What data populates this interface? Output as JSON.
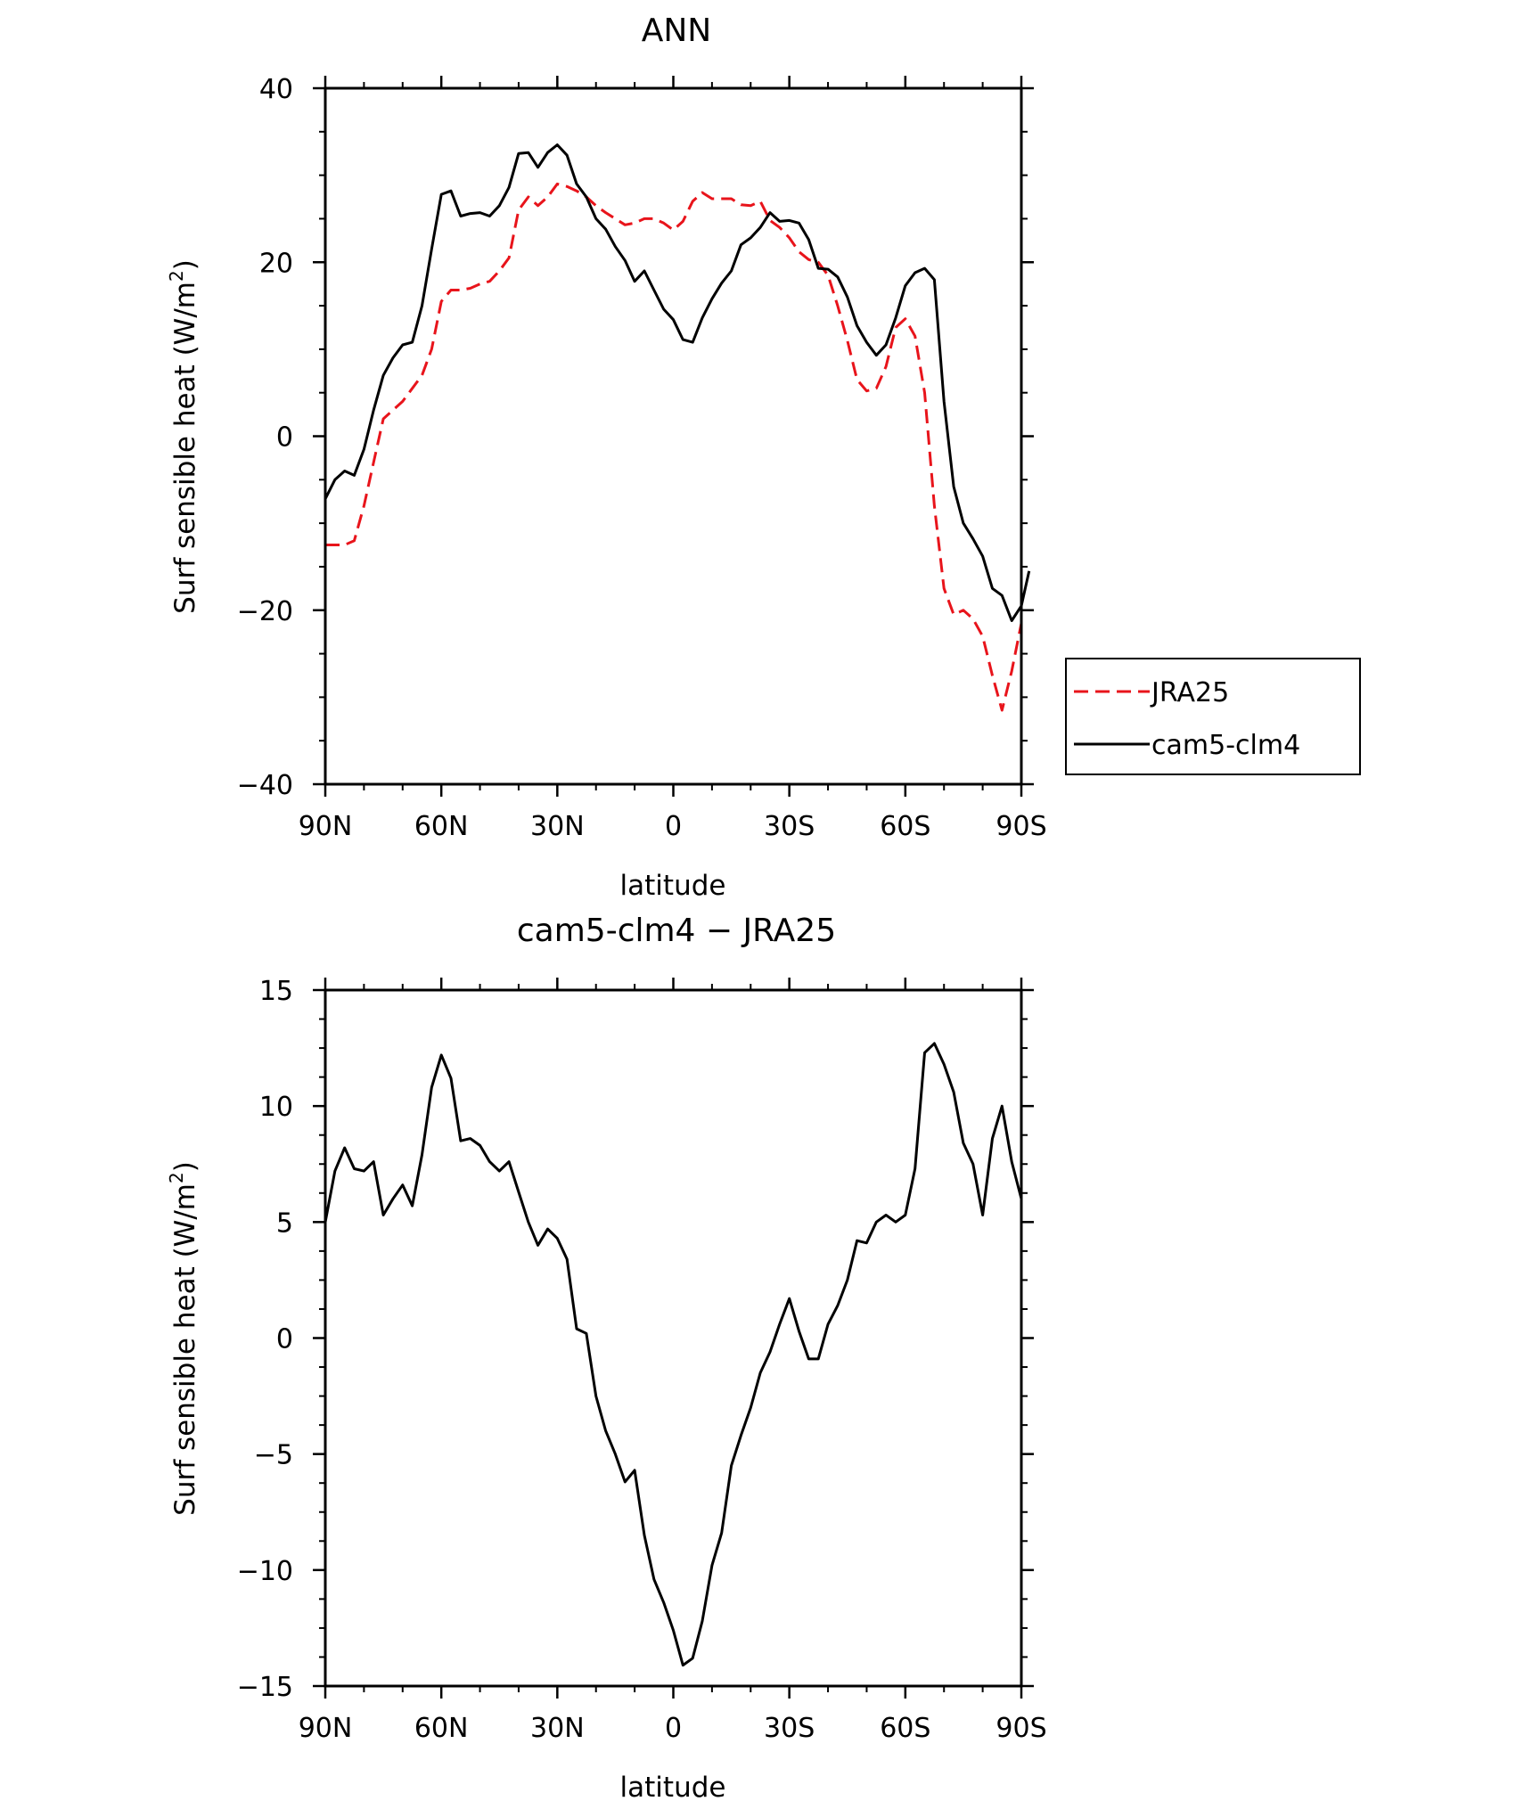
{
  "chart_data": [
    {
      "type": "line",
      "title": "ANN",
      "xlabel": "latitude",
      "ylabel": "Surf sensible heat (W/m²)",
      "ylabel_main": "Surf sensible heat (W/m",
      "ylabel_sup": "2",
      "ylabel_close": ")",
      "xlim": [
        90,
        -90
      ],
      "ylim": [
        -40,
        40
      ],
      "x_ticks": [
        {
          "value": 90,
          "label": "90N"
        },
        {
          "value": 60,
          "label": "60N"
        },
        {
          "value": 30,
          "label": "30N"
        },
        {
          "value": 0,
          "label": "0"
        },
        {
          "value": -30,
          "label": "30S"
        },
        {
          "value": -60,
          "label": "60S"
        },
        {
          "value": -90,
          "label": "90S"
        }
      ],
      "y_ticks": [
        {
          "value": 40,
          "label": "40"
        },
        {
          "value": 20,
          "label": "20"
        },
        {
          "value": 0,
          "label": "0"
        },
        {
          "value": -20,
          "label": "−20"
        },
        {
          "value": -40,
          "label": "−40"
        }
      ],
      "legend": {
        "position": "right, outside the plot area"
      },
      "series": [
        {
          "name": "JRA25",
          "color": "#e8141b",
          "dash": "dashed",
          "points": [
            [
              90,
              -12.5
            ],
            [
              87.5,
              -12.5
            ],
            [
              85,
              -12.5
            ],
            [
              82.5,
              -12
            ],
            [
              80,
              -8
            ],
            [
              77.5,
              -3
            ],
            [
              75,
              2
            ],
            [
              72.5,
              3
            ],
            [
              70,
              4
            ],
            [
              67.5,
              5.5
            ],
            [
              65,
              7
            ],
            [
              62.5,
              10
            ],
            [
              60,
              15.5
            ],
            [
              57.5,
              16.8
            ],
            [
              55,
              16.8
            ],
            [
              52.5,
              17
            ],
            [
              50,
              17.5
            ],
            [
              47.5,
              17.8
            ],
            [
              45,
              19
            ],
            [
              42.5,
              20.5
            ],
            [
              40,
              26
            ],
            [
              37.5,
              27.5
            ],
            [
              35,
              26.5
            ],
            [
              32.5,
              27.5
            ],
            [
              30,
              29
            ],
            [
              27.5,
              28.7
            ],
            [
              25,
              28.2
            ],
            [
              22.5,
              27.5
            ],
            [
              20,
              26.5
            ],
            [
              17.5,
              25.7
            ],
            [
              15,
              25
            ],
            [
              12.5,
              24.3
            ],
            [
              10,
              24.5
            ],
            [
              7.5,
              25
            ],
            [
              5,
              25
            ],
            [
              2.5,
              24.5
            ],
            [
              0,
              23.7
            ],
            [
              -2.5,
              24.7
            ],
            [
              -5,
              27
            ],
            [
              -7.5,
              28
            ],
            [
              -10,
              27.3
            ],
            [
              -12.5,
              27.3
            ],
            [
              -15,
              27.3
            ],
            [
              -17.5,
              26.6
            ],
            [
              -20,
              26.5
            ],
            [
              -22.5,
              27
            ],
            [
              -25,
              24.8
            ],
            [
              -27.5,
              24
            ],
            [
              -30,
              22.8
            ],
            [
              -32.5,
              21.2
            ],
            [
              -35,
              20.3
            ],
            [
              -37.5,
              20
            ],
            [
              -40,
              18.5
            ],
            [
              -42.5,
              15
            ],
            [
              -45,
              11
            ],
            [
              -47.5,
              6.5
            ],
            [
              -50,
              5.2
            ],
            [
              -52.5,
              5.5
            ],
            [
              -55,
              8
            ],
            [
              -57.5,
              12.5
            ],
            [
              -60,
              13.5
            ],
            [
              -62.5,
              11.5
            ],
            [
              -65,
              5
            ],
            [
              -67.5,
              -8
            ],
            [
              -70,
              -17.5
            ],
            [
              -72.5,
              -20.5
            ],
            [
              -75,
              -20
            ],
            [
              -77.5,
              -21
            ],
            [
              -80,
              -23
            ],
            [
              -82.5,
              -27.5
            ],
            [
              -85,
              -31.5
            ],
            [
              -87.5,
              -27
            ],
            [
              -90,
              -21.5
            ]
          ]
        },
        {
          "name": "cam5-clm4",
          "color": "#000000",
          "dash": "solid",
          "points": [
            [
              90,
              -7.2
            ],
            [
              87.5,
              -5
            ],
            [
              85,
              -4
            ],
            [
              82.5,
              -4.5
            ],
            [
              80,
              -1.5
            ],
            [
              77.5,
              3
            ],
            [
              75,
              7
            ],
            [
              72.5,
              9
            ],
            [
              70,
              10.5
            ],
            [
              67.5,
              10.8
            ],
            [
              65,
              15
            ],
            [
              62.5,
              21.5
            ],
            [
              60,
              27.8
            ],
            [
              57.5,
              28.2
            ],
            [
              55,
              25.3
            ],
            [
              52.5,
              25.6
            ],
            [
              50,
              25.7
            ],
            [
              47.5,
              25.3
            ],
            [
              45,
              26.5
            ],
            [
              42.5,
              28.6
            ],
            [
              40,
              32.5
            ],
            [
              37.5,
              32.6
            ],
            [
              35,
              30.9
            ],
            [
              32.5,
              32.6
            ],
            [
              30,
              33.5
            ],
            [
              27.5,
              32.3
            ],
            [
              25,
              29
            ],
            [
              22.5,
              27.5
            ],
            [
              20,
              25
            ],
            [
              17.5,
              23.8
            ],
            [
              15,
              21.8
            ],
            [
              12.5,
              20.2
            ],
            [
              10,
              17.8
            ],
            [
              7.5,
              19
            ],
            [
              5,
              16.8
            ],
            [
              2.5,
              14.6
            ],
            [
              0,
              13.4
            ],
            [
              -2.5,
              11.1
            ],
            [
              -5,
              10.8
            ],
            [
              -7.5,
              13.6
            ],
            [
              -10,
              15.8
            ],
            [
              -12.5,
              17.6
            ],
            [
              -15,
              19
            ],
            [
              -17.5,
              22
            ],
            [
              -20,
              22.8
            ],
            [
              -22.5,
              24
            ],
            [
              -25,
              25.7
            ],
            [
              -27.5,
              24.7
            ],
            [
              -30,
              24.8
            ],
            [
              -32.5,
              24.5
            ],
            [
              -35,
              22.6
            ],
            [
              -37.5,
              19.3
            ],
            [
              -40,
              19.2
            ],
            [
              -42.5,
              18.3
            ],
            [
              -45,
              16
            ],
            [
              -47.5,
              12.7
            ],
            [
              -50,
              10.8
            ],
            [
              -52.5,
              9.3
            ],
            [
              -55,
              10.5
            ],
            [
              -57.5,
              13.6
            ],
            [
              -60,
              17.3
            ],
            [
              -62.5,
              18.8
            ],
            [
              -65,
              19.3
            ],
            [
              -67.5,
              18
            ],
            [
              -70,
              4
            ],
            [
              -72.5,
              -5.8
            ],
            [
              -75,
              -10
            ],
            [
              -77.5,
              -11.8
            ],
            [
              -80,
              -13.8
            ],
            [
              -82.5,
              -17.5
            ],
            [
              -85,
              -18.3
            ],
            [
              -87.5,
              -21.2
            ],
            [
              -90,
              -19.5
            ],
            [
              -92,
              -15.5
            ]
          ]
        }
      ]
    },
    {
      "type": "line",
      "title": "cam5-clm4 − JRA25",
      "xlabel": "latitude",
      "ylabel": "Surf sensible heat (W/m²)",
      "ylabel_main": "Surf sensible heat (W/m",
      "ylabel_sup": "2",
      "ylabel_close": ")",
      "xlim": [
        90,
        -90
      ],
      "ylim": [
        -15,
        15
      ],
      "x_ticks": [
        {
          "value": 90,
          "label": "90N"
        },
        {
          "value": 60,
          "label": "60N"
        },
        {
          "value": 30,
          "label": "30N"
        },
        {
          "value": 0,
          "label": "0"
        },
        {
          "value": -30,
          "label": "30S"
        },
        {
          "value": -60,
          "label": "60S"
        },
        {
          "value": -90,
          "label": "90S"
        }
      ],
      "y_ticks": [
        {
          "value": 15,
          "label": "15"
        },
        {
          "value": 10,
          "label": "10"
        },
        {
          "value": 5,
          "label": "5"
        },
        {
          "value": 0,
          "label": "0"
        },
        {
          "value": -5,
          "label": "−5"
        },
        {
          "value": -10,
          "label": "−10"
        },
        {
          "value": -15,
          "label": "−15"
        }
      ],
      "series": [
        {
          "name": "",
          "color": "#000000",
          "dash": "solid",
          "points": [
            [
              90,
              5
            ],
            [
              87.5,
              7.2
            ],
            [
              85,
              8.2
            ],
            [
              82.5,
              7.3
            ],
            [
              80,
              7.2
            ],
            [
              77.5,
              7.6
            ],
            [
              75,
              5.3
            ],
            [
              72.5,
              6
            ],
            [
              70,
              6.6
            ],
            [
              67.5,
              5.7
            ],
            [
              65,
              7.9
            ],
            [
              62.5,
              10.8
            ],
            [
              60,
              12.2
            ],
            [
              57.5,
              11.2
            ],
            [
              55,
              8.5
            ],
            [
              52.5,
              8.6
            ],
            [
              50,
              8.3
            ],
            [
              47.5,
              7.6
            ],
            [
              45,
              7.2
            ],
            [
              42.5,
              7.6
            ],
            [
              40,
              6.3
            ],
            [
              37.5,
              5
            ],
            [
              35,
              4
            ],
            [
              32.5,
              4.7
            ],
            [
              30,
              4.3
            ],
            [
              27.5,
              3.4
            ],
            [
              25,
              0.4
            ],
            [
              22.5,
              0.2
            ],
            [
              20,
              -2.5
            ],
            [
              17.5,
              -4
            ],
            [
              15,
              -5
            ],
            [
              12.5,
              -6.2
            ],
            [
              10,
              -5.7
            ],
            [
              7.5,
              -8.5
            ],
            [
              5,
              -10.4
            ],
            [
              2.5,
              -11.4
            ],
            [
              0,
              -12.6
            ],
            [
              -2.5,
              -14.1
            ],
            [
              -5,
              -13.8
            ],
            [
              -7.5,
              -12.2
            ],
            [
              -10,
              -9.8
            ],
            [
              -12.5,
              -8.4
            ],
            [
              -15,
              -5.5
            ],
            [
              -17.5,
              -4.2
            ],
            [
              -20,
              -3
            ],
            [
              -22.5,
              -1.5
            ],
            [
              -25,
              -0.6
            ],
            [
              -27.5,
              0.6
            ],
            [
              -30,
              1.7
            ],
            [
              -32.5,
              0.3
            ],
            [
              -35,
              -0.9
            ],
            [
              -37.5,
              -0.9
            ],
            [
              -40,
              0.6
            ],
            [
              -42.5,
              1.4
            ],
            [
              -45,
              2.5
            ],
            [
              -47.5,
              4.2
            ],
            [
              -50,
              4.1
            ],
            [
              -52.5,
              5
            ],
            [
              -55,
              5.3
            ],
            [
              -57.5,
              5
            ],
            [
              -60,
              5.3
            ],
            [
              -62.5,
              7.3
            ],
            [
              -65,
              12.3
            ],
            [
              -67.5,
              12.7
            ],
            [
              -70,
              11.8
            ],
            [
              -72.5,
              10.6
            ],
            [
              -75,
              8.4
            ],
            [
              -77.5,
              7.5
            ],
            [
              -80,
              5.3
            ],
            [
              -82.5,
              8.6
            ],
            [
              -85,
              10
            ],
            [
              -87.5,
              7.6
            ],
            [
              -90,
              6
            ]
          ]
        }
      ]
    }
  ]
}
